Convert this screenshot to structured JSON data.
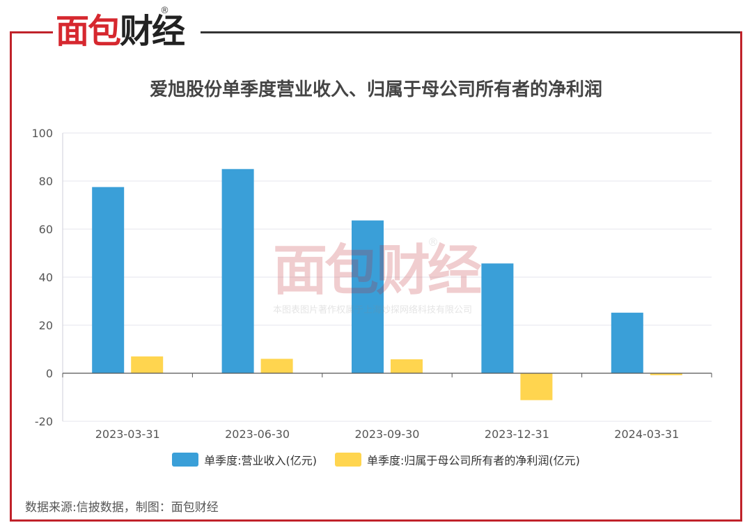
{
  "brand": {
    "logo_red": "面包",
    "logo_dark": "财经",
    "registered": "®",
    "watermark_logo": "面包财经",
    "watermark_text": "本图表图片著作权属于上海妙探网络科技有限公司"
  },
  "footer": {
    "source": "数据来源:信披数据，制图：面包财经"
  },
  "colors": {
    "revenue": "#3a9fd8",
    "profit": "#ffd54f",
    "frame": "#c0222a"
  },
  "chart_data": {
    "type": "bar",
    "title": "爱旭股份单季度营业收入、归属于母公司所有者的净利润",
    "categories": [
      "2023-03-31",
      "2023-06-30",
      "2023-09-30",
      "2023-12-31",
      "2024-03-31"
    ],
    "series": [
      {
        "name": "单季度:营业收入(亿元)",
        "values": [
          77.5,
          85.0,
          63.6,
          45.7,
          25.2
        ]
      },
      {
        "name": "单季度:归属于母公司所有者的净利润(亿元)",
        "values": [
          7.0,
          6.0,
          5.8,
          -11.2,
          -0.8
        ]
      }
    ],
    "ylim": [
      -20,
      100
    ],
    "yticks": [
      100,
      80,
      60,
      40,
      20,
      0,
      -20
    ],
    "xlabel": "",
    "ylabel": "",
    "grid": true,
    "legend": "bottom"
  }
}
